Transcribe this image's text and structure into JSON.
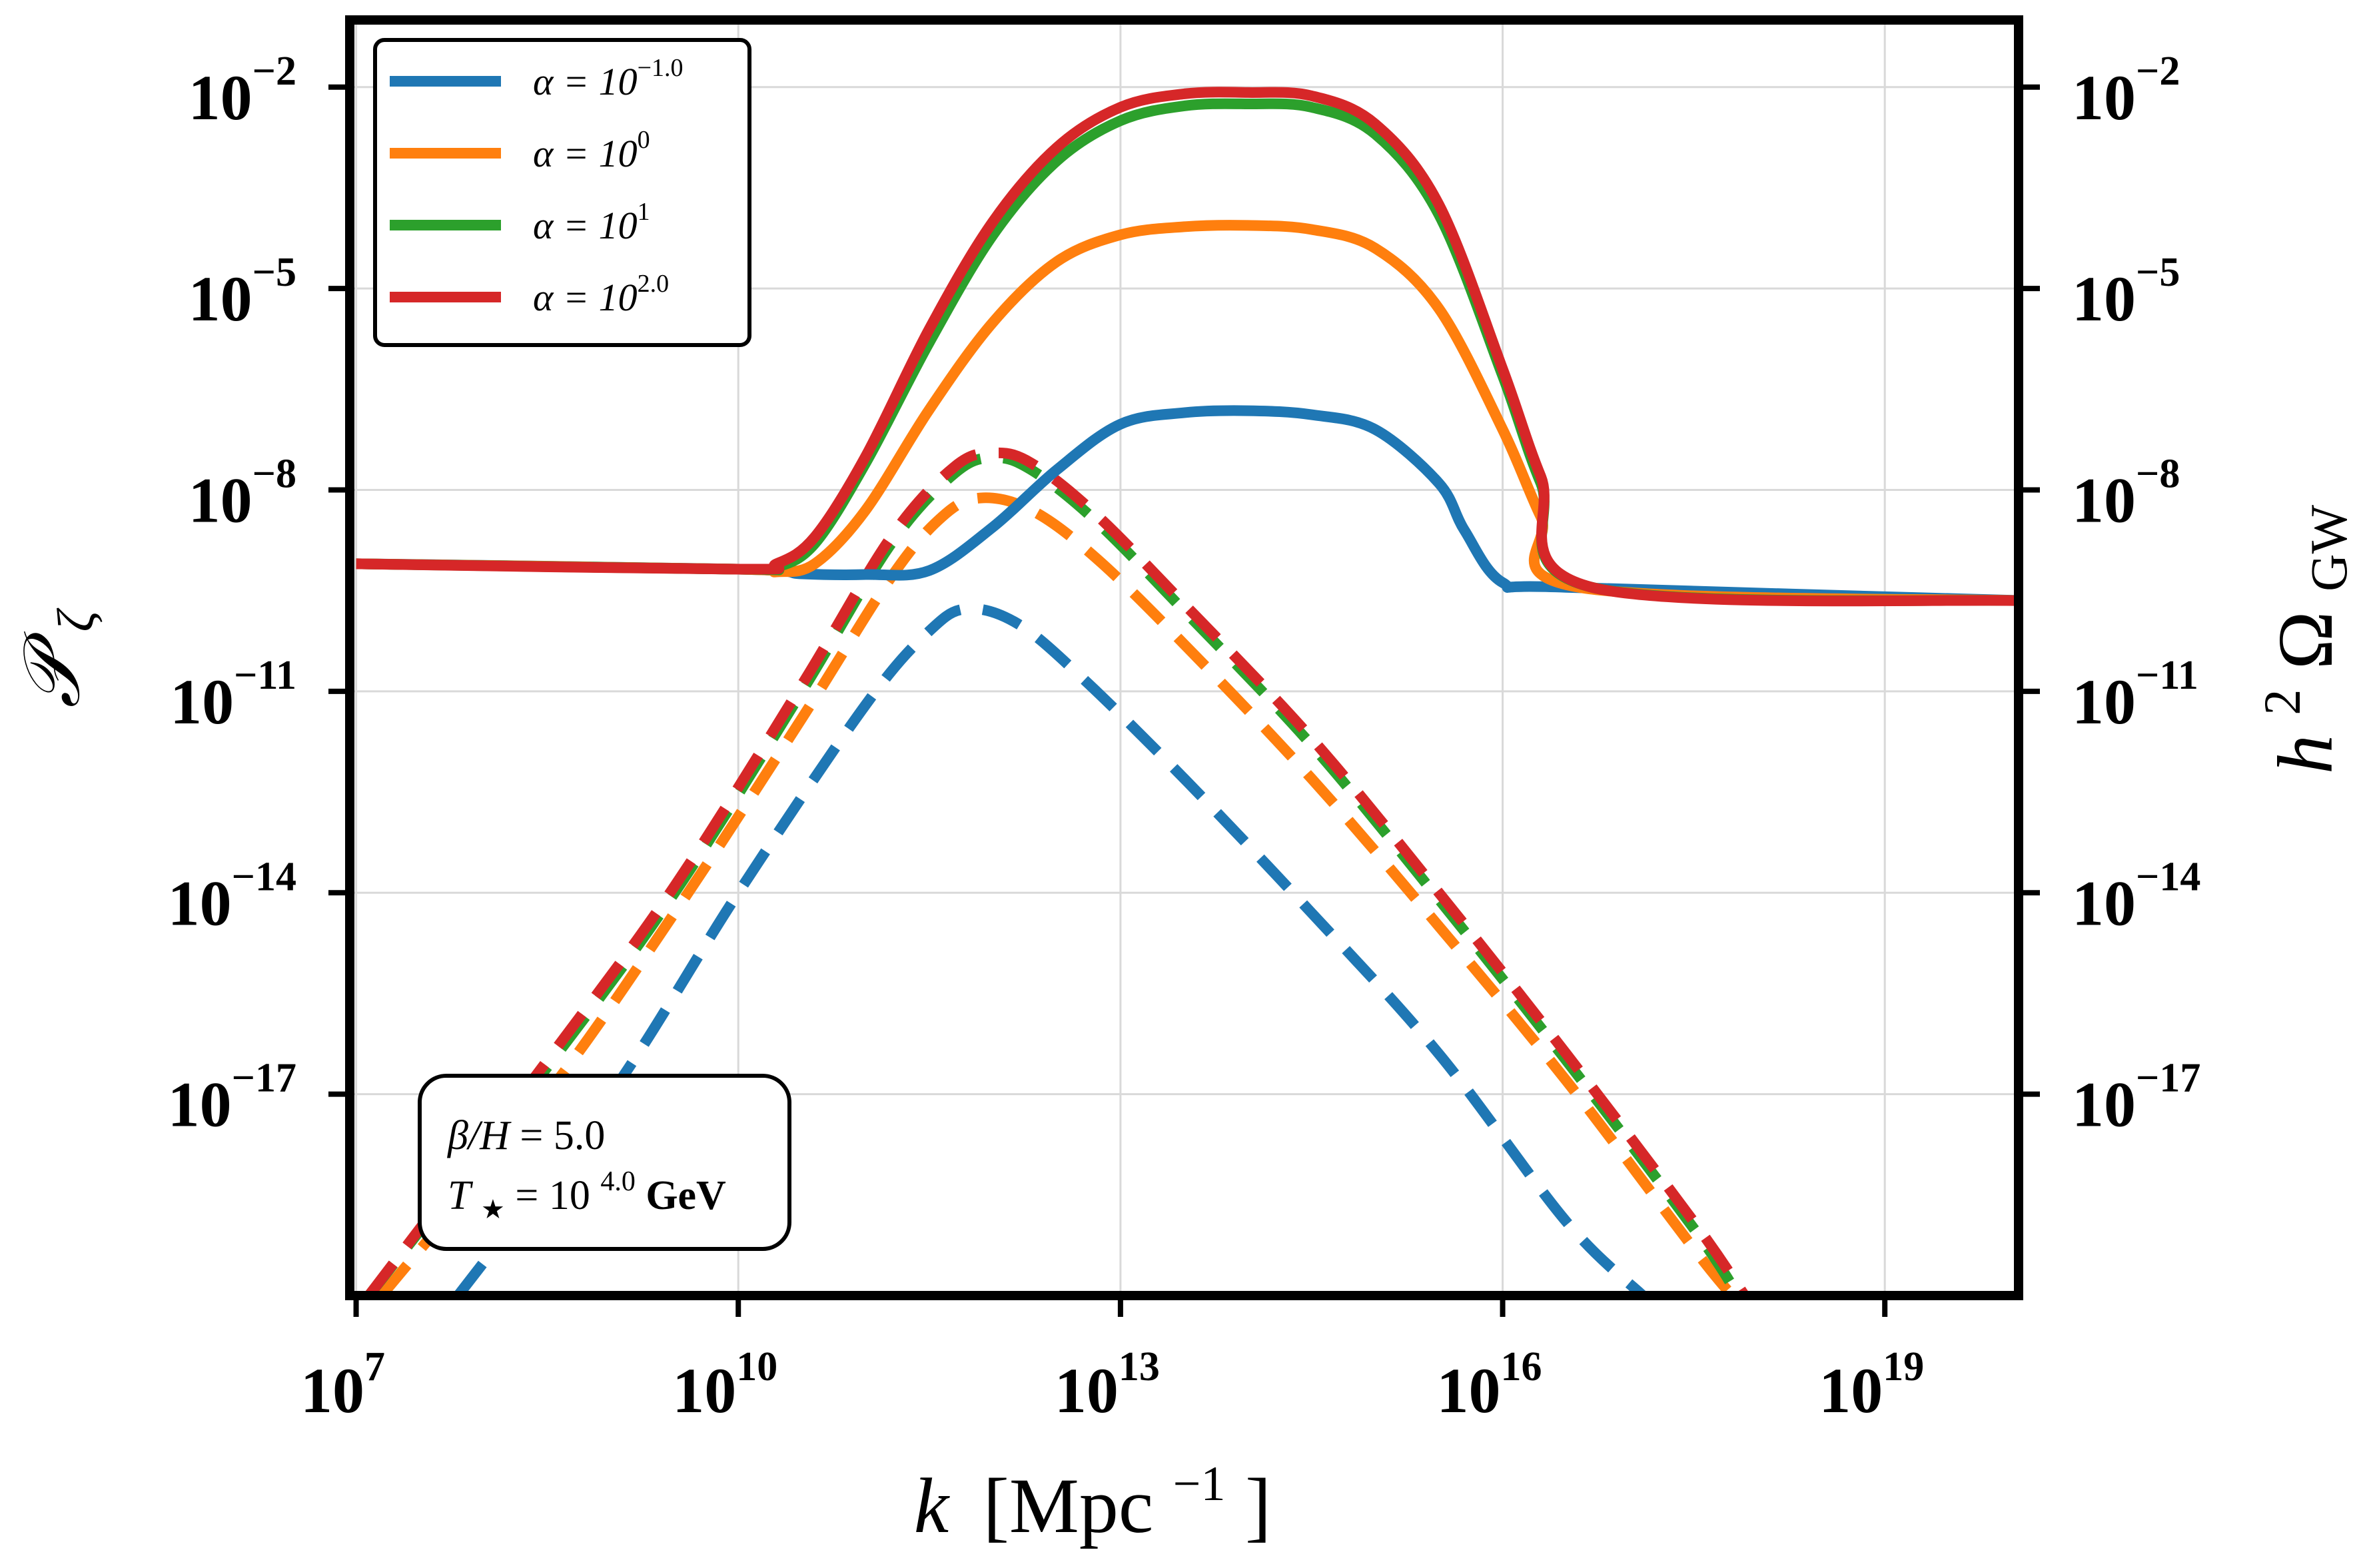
{
  "chart_data": {
    "type": "line",
    "xlabel": {
      "var": "k",
      "unit": "[Mpc",
      "unit_exp": "−1",
      "close": "]"
    },
    "ylabel_left": {
      "main": "𝒫",
      "sub": "ζ"
    },
    "ylabel_right": {
      "main": "h",
      "sup": "2",
      "omega": "Ω",
      "sub": "GW"
    },
    "xscale": "log",
    "yscale": "log",
    "xlim_log10": [
      6.95,
      20.05
    ],
    "ylim_log10": [
      -20.0,
      -1.0
    ],
    "x_ticks": [
      {
        "base": "10",
        "exp": "7",
        "log10": 7
      },
      {
        "base": "10",
        "exp": "10",
        "log10": 10
      },
      {
        "base": "10",
        "exp": "13",
        "log10": 13
      },
      {
        "base": "10",
        "exp": "16",
        "log10": 16
      },
      {
        "base": "10",
        "exp": "19",
        "log10": 19
      }
    ],
    "y_ticks": [
      {
        "base": "10",
        "exp": "−2",
        "log10": -2
      },
      {
        "base": "10",
        "exp": "−5",
        "log10": -5
      },
      {
        "base": "10",
        "exp": "−8",
        "log10": -8
      },
      {
        "base": "10",
        "exp": "−11",
        "log10": -11
      },
      {
        "base": "10",
        "exp": "−14",
        "log10": -14
      },
      {
        "base": "10",
        "exp": "−17",
        "log10": -17
      }
    ],
    "grid": true,
    "legend_position": "top-left",
    "annotation": {
      "line1": {
        "sym": "β/H",
        "eq": " = ",
        "val": "5.0"
      },
      "line2": {
        "sym": "T",
        "sub": "★",
        "eq": " = ",
        "base": "10",
        "exp": "4.0",
        "unit": " GeV"
      },
      "position": "bottom-left"
    },
    "series": [
      {
        "name": "α = 10^−1.0",
        "legend": {
          "pre": "α = 10",
          "exp": "−1.0"
        },
        "color": "#1f77b4",
        "P_zeta": {
          "log10_k": [
            7.0,
            10.0,
            10.5,
            11.0,
            11.5,
            12.0,
            12.5,
            13.0,
            13.5,
            14.0,
            14.5,
            15.0,
            15.5,
            15.7,
            16.0,
            16.5,
            20.1
          ],
          "log10_P": [
            -9.1,
            -9.18,
            -9.25,
            -9.26,
            -9.2,
            -8.55,
            -7.7,
            -7.02,
            -6.85,
            -6.82,
            -6.88,
            -7.1,
            -7.9,
            -8.6,
            -9.38,
            -9.45,
            -9.65
          ]
        },
        "Omega_GW": {
          "log10_k": [
            7.8,
            9.0,
            10.0,
            11.0,
            11.5,
            11.8,
            12.2,
            12.7,
            13.5,
            14.5,
            15.5,
            16.5,
            17.1
          ],
          "log10_Omega": [
            -20.0,
            -17.0,
            -14.0,
            -11.2,
            -10.1,
            -9.77,
            -10.0,
            -10.8,
            -12.3,
            -14.3,
            -16.4,
            -18.9,
            -20.0
          ]
        }
      },
      {
        "name": "α = 10^0",
        "legend": {
          "pre": "α = 10",
          "exp": "0"
        },
        "color": "#ff7f0e",
        "P_zeta": {
          "log10_k": [
            7.0,
            10.0,
            10.3,
            10.6,
            11.0,
            11.5,
            12.0,
            12.5,
            13.0,
            13.5,
            14.0,
            14.5,
            15.0,
            15.5,
            16.0,
            16.3,
            16.6,
            20.1
          ],
          "log10_P": [
            -9.1,
            -9.18,
            -9.22,
            -9.1,
            -8.3,
            -6.8,
            -5.5,
            -4.6,
            -4.2,
            -4.08,
            -4.06,
            -4.12,
            -4.4,
            -5.3,
            -7.1,
            -8.4,
            -9.45,
            -9.65
          ]
        },
        "Omega_GW": {
          "log10_k": [
            7.2,
            8.5,
            9.5,
            10.5,
            11.2,
            11.6,
            11.9,
            12.3,
            12.8,
            13.5,
            14.5,
            15.5,
            16.5,
            17.5,
            17.8
          ],
          "log10_Omega": [
            -20.0,
            -17.0,
            -14.3,
            -11.4,
            -9.3,
            -8.4,
            -8.12,
            -8.3,
            -9.0,
            -10.3,
            -12.3,
            -14.5,
            -16.8,
            -19.3,
            -20.0
          ]
        }
      },
      {
        "name": "α = 10^1",
        "legend": {
          "pre": "α = 10",
          "exp": "1"
        },
        "color": "#2ca02c",
        "P_zeta": {
          "log10_k": [
            7.0,
            10.0,
            10.3,
            10.6,
            11.0,
            11.5,
            12.0,
            12.5,
            13.0,
            13.5,
            14.0,
            14.5,
            15.0,
            15.5,
            16.0,
            16.3,
            16.7,
            20.1
          ],
          "log10_P": [
            -9.1,
            -9.18,
            -9.15,
            -8.8,
            -7.6,
            -5.8,
            -4.2,
            -3.1,
            -2.5,
            -2.28,
            -2.25,
            -2.3,
            -2.7,
            -3.9,
            -6.3,
            -7.9,
            -9.45,
            -9.65
          ]
        },
        "Omega_GW": {
          "log10_k": [
            7.1,
            8.5,
            9.5,
            10.5,
            11.2,
            11.7,
            12.0,
            12.3,
            12.8,
            13.5,
            14.5,
            15.5,
            16.5,
            17.5,
            17.85
          ],
          "log10_Omega": [
            -20.0,
            -16.6,
            -14.0,
            -11.0,
            -8.8,
            -7.75,
            -7.52,
            -7.7,
            -8.45,
            -9.8,
            -11.8,
            -14.1,
            -16.5,
            -19.0,
            -20.0
          ]
        }
      },
      {
        "name": "α = 10^2.0",
        "legend": {
          "pre": "α = 10",
          "exp": "2.0"
        },
        "color": "#d62728",
        "P_zeta": {
          "log10_k": [
            7.0,
            10.0,
            10.3,
            10.6,
            11.0,
            11.5,
            12.0,
            12.5,
            13.0,
            13.5,
            14.0,
            14.5,
            15.0,
            15.5,
            16.0,
            16.3,
            16.7,
            20.1
          ],
          "log10_P": [
            -9.1,
            -9.18,
            -9.1,
            -8.7,
            -7.5,
            -5.6,
            -4.0,
            -2.9,
            -2.3,
            -2.1,
            -2.08,
            -2.13,
            -2.55,
            -3.75,
            -6.2,
            -7.8,
            -9.45,
            -9.65
          ]
        },
        "Omega_GW": {
          "log10_k": [
            7.1,
            8.5,
            9.5,
            10.5,
            11.2,
            11.7,
            12.0,
            12.3,
            12.8,
            13.5,
            14.5,
            15.5,
            16.5,
            17.5,
            17.9
          ],
          "log10_Omega": [
            -20.0,
            -16.5,
            -13.9,
            -10.9,
            -8.7,
            -7.65,
            -7.45,
            -7.6,
            -8.35,
            -9.7,
            -11.7,
            -14.0,
            -16.4,
            -18.9,
            -20.0
          ]
        }
      }
    ]
  }
}
